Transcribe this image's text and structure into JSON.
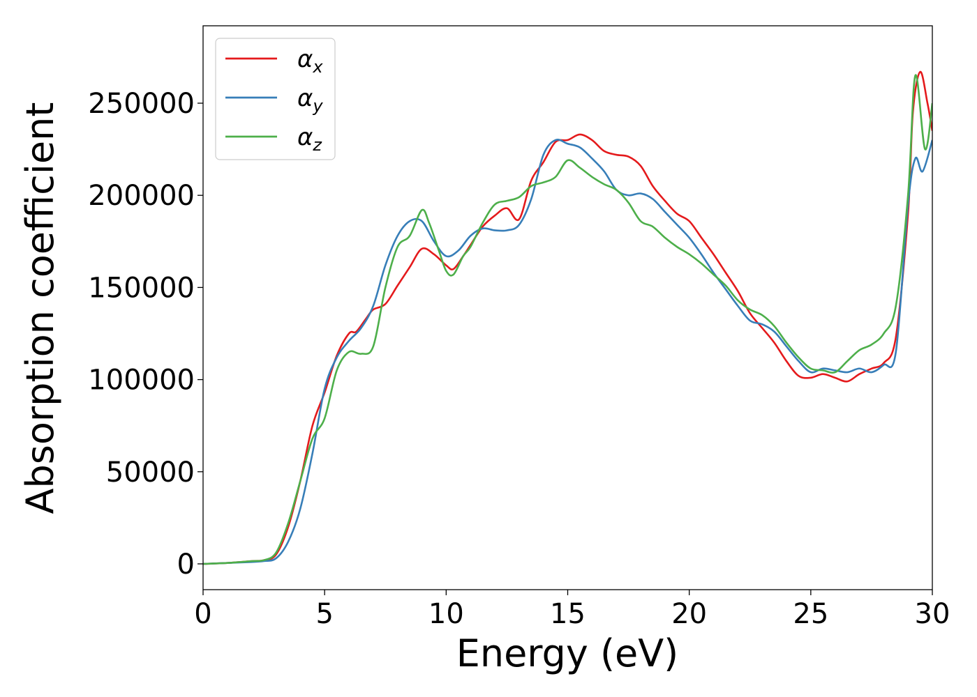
{
  "chart_data": {
    "type": "line",
    "title": "",
    "xlabel": "Energy (eV)",
    "ylabel": "Absorption coefficient",
    "xlim": [
      0,
      30
    ],
    "ylim": [
      -14000,
      292000
    ],
    "xticks": [
      0,
      5,
      10,
      15,
      20,
      25,
      30
    ],
    "yticks": [
      0,
      50000,
      100000,
      150000,
      200000,
      250000
    ],
    "grid": false,
    "legend": "top-left",
    "series": [
      {
        "name": "αx",
        "base": "α",
        "sub": "x",
        "color": "#e41a1c",
        "x": [
          0,
          1,
          2,
          2.5,
          3,
          3.5,
          4,
          4.5,
          5,
          5.5,
          6,
          6.3,
          6.7,
          7,
          7.5,
          8,
          8.5,
          9,
          9.5,
          10,
          10.3,
          10.7,
          11,
          11.5,
          12,
          12.5,
          13,
          13.5,
          14,
          14.5,
          15,
          15.5,
          16,
          16.5,
          17,
          17.5,
          18,
          18.5,
          19,
          19.5,
          20,
          20.5,
          21,
          21.5,
          22,
          22.5,
          23,
          23.5,
          24,
          24.5,
          25,
          25.5,
          26,
          26.5,
          27,
          27.5,
          28,
          28.5,
          29,
          29.2,
          29.5,
          29.8,
          30
        ],
        "y": [
          0,
          500,
          1500,
          2000,
          5000,
          20000,
          45000,
          75000,
          93000,
          113000,
          125000,
          126000,
          133000,
          138000,
          141000,
          151000,
          161000,
          171000,
          168000,
          162000,
          160000,
          167000,
          173000,
          183000,
          189000,
          193000,
          187000,
          208000,
          218000,
          229000,
          230000,
          233000,
          230000,
          224000,
          222000,
          221000,
          216000,
          205000,
          197000,
          190000,
          186000,
          177000,
          168000,
          158000,
          148000,
          136000,
          128000,
          120000,
          110000,
          102000,
          101000,
          103000,
          101000,
          99000,
          103000,
          106000,
          109000,
          123000,
          190000,
          245000,
          267000,
          250000,
          235000
        ]
      },
      {
        "name": "αy",
        "base": "α",
        "sub": "y",
        "color": "#377eb8",
        "x": [
          0,
          1,
          2,
          2.5,
          3,
          3.5,
          4,
          4.5,
          5,
          5.5,
          6,
          6.5,
          7,
          7.5,
          8,
          8.5,
          9,
          9.5,
          10,
          10.5,
          11,
          11.5,
          12,
          12.5,
          13,
          13.5,
          14,
          14.5,
          15,
          15.5,
          16,
          16.5,
          17,
          17.5,
          18,
          18.5,
          19,
          19.5,
          20,
          20.5,
          21,
          21.5,
          22,
          22.5,
          23,
          23.5,
          24,
          24.5,
          25,
          25.5,
          26,
          26.5,
          27,
          27.5,
          28,
          28.5,
          29,
          29.3,
          29.6,
          30
        ],
        "y": [
          0,
          500,
          1000,
          1500,
          3000,
          12000,
          30000,
          60000,
          95000,
          112000,
          121000,
          128000,
          140000,
          162000,
          178000,
          186000,
          186000,
          175000,
          167000,
          170000,
          178000,
          182000,
          181000,
          181000,
          184000,
          198000,
          222000,
          230000,
          228000,
          226000,
          220000,
          213000,
          203000,
          200000,
          201000,
          198000,
          191000,
          184000,
          177000,
          168000,
          158000,
          149000,
          140000,
          132000,
          130000,
          126000,
          118000,
          110000,
          104000,
          106000,
          105000,
          104000,
          106000,
          104000,
          108000,
          115000,
          195000,
          220000,
          213000,
          230000
        ]
      },
      {
        "name": "αz",
        "base": "α",
        "sub": "z",
        "color": "#4daf4a",
        "x": [
          0,
          1,
          2,
          2.5,
          3,
          3.5,
          4,
          4.5,
          5,
          5.5,
          6,
          6.5,
          7,
          7.5,
          8,
          8.5,
          9,
          9.3,
          9.7,
          10,
          10.3,
          10.7,
          11,
          11.5,
          12,
          12.5,
          13,
          13.5,
          14,
          14.5,
          15,
          15.5,
          16,
          16.5,
          17,
          17.5,
          18,
          18.5,
          19,
          19.5,
          20,
          20.5,
          21,
          21.5,
          22,
          22.5,
          23,
          23.5,
          24,
          24.5,
          25,
          25.5,
          26,
          26.5,
          27,
          27.5,
          28,
          28.5,
          29,
          29.3,
          29.7,
          30
        ],
        "y": [
          0,
          500,
          1500,
          2000,
          6000,
          22000,
          45000,
          68000,
          79000,
          105000,
          115000,
          114000,
          118000,
          150000,
          172000,
          178000,
          192000,
          185000,
          170000,
          159000,
          157000,
          167000,
          172000,
          185000,
          195000,
          197000,
          199000,
          205000,
          207000,
          210000,
          219000,
          215000,
          210000,
          206000,
          203000,
          196000,
          186000,
          183000,
          177000,
          172000,
          168000,
          163000,
          157000,
          151000,
          143000,
          138000,
          135000,
          129000,
          120000,
          112000,
          106000,
          105000,
          104000,
          110000,
          116000,
          119000,
          125000,
          140000,
          200000,
          265000,
          225000,
          250000
        ]
      }
    ]
  }
}
